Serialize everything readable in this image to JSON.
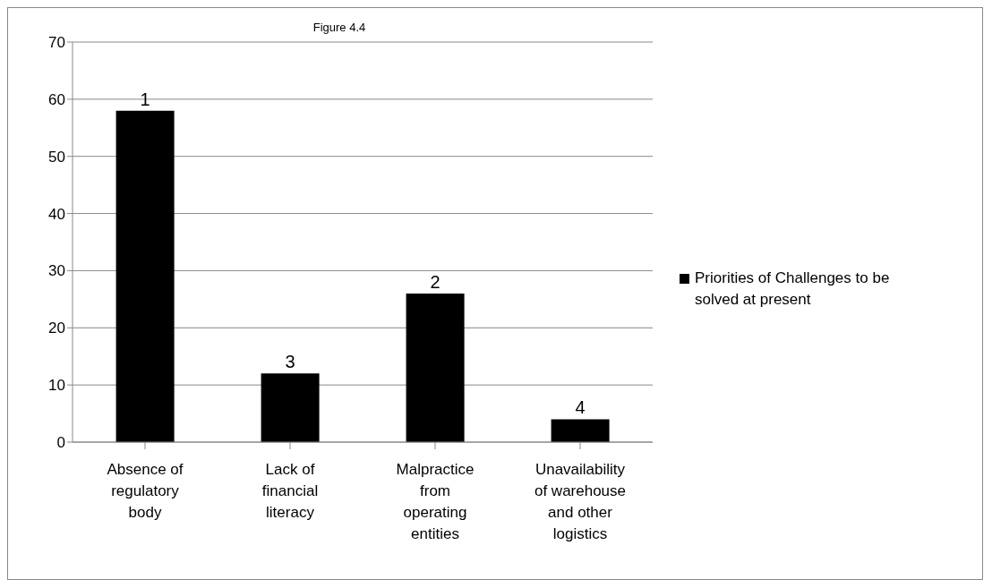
{
  "chart_data": {
    "type": "bar",
    "title": "Figure 4.4",
    "categories": [
      "Absence of regulatory body",
      "Lack of financial literacy",
      "Malpractice from operating entities",
      "Unavailability of warehouse and other logistics"
    ],
    "series": [
      {
        "name": "Priorities of Challenges to be solved at present",
        "color": "#000000",
        "values": [
          58,
          12,
          26,
          4
        ]
      }
    ],
    "annotations": [
      {
        "text": "1",
        "x": "Absence of regulatory body",
        "y": 58
      },
      {
        "text": "3",
        "x": "Lack of financial literacy",
        "y": 12
      },
      {
        "text": "2",
        "x": "Malpractice from operating entities",
        "y": 26
      },
      {
        "text": "4",
        "x": "Unavailability of warehouse and other logistics",
        "y": 4
      }
    ],
    "ylim": [
      0,
      70
    ],
    "yticks": [
      0,
      10,
      20,
      30,
      40,
      50,
      60,
      70
    ],
    "grid": "y",
    "legend": "right"
  }
}
